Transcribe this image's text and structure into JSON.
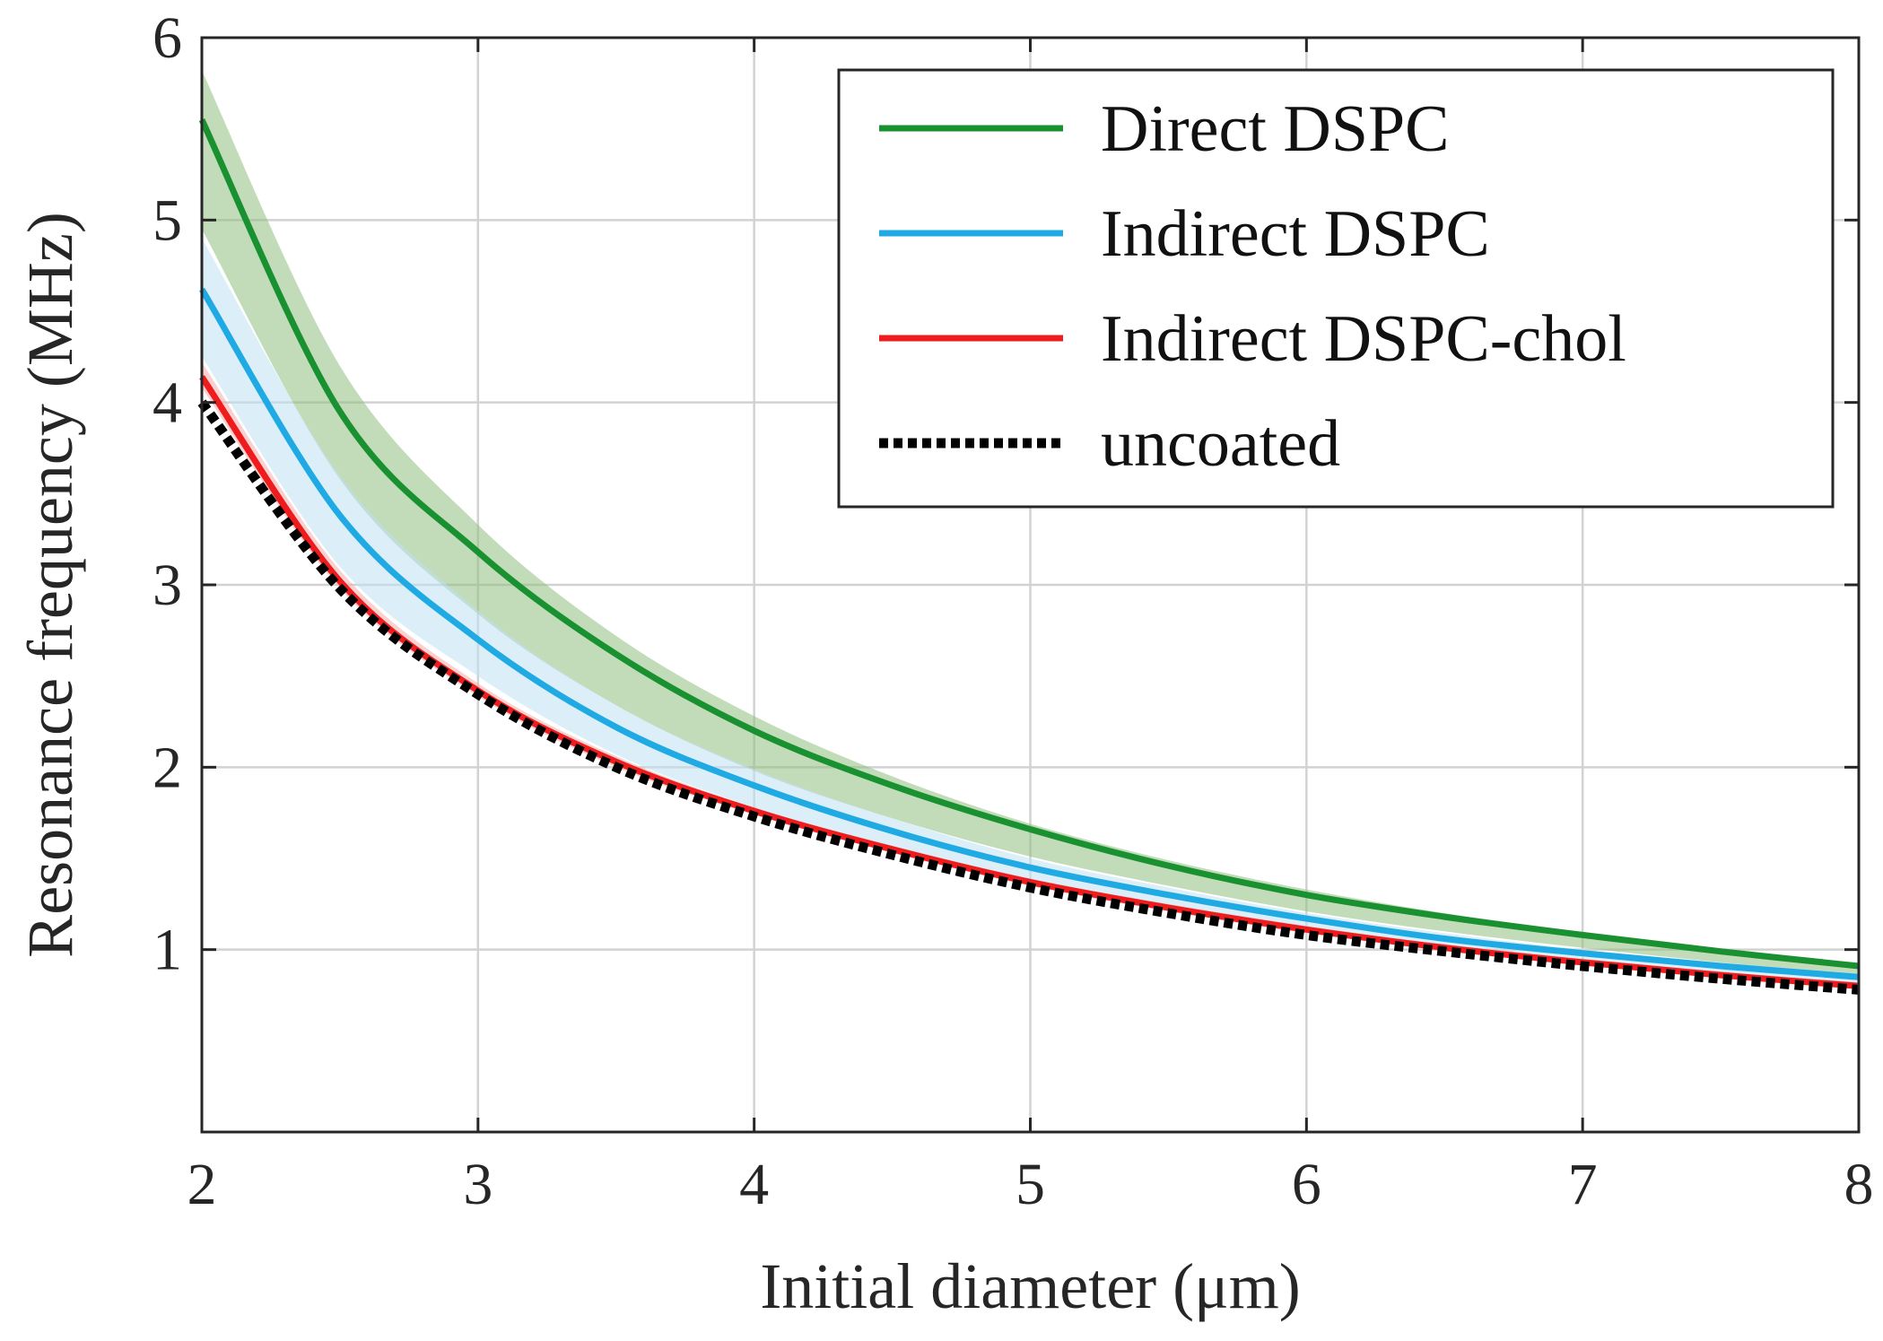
{
  "chart_data": {
    "type": "line",
    "title": "",
    "xlabel": "Initial diameter (μm)",
    "ylabel": "Resonance frequency (MHz)",
    "xlim": [
      2,
      8
    ],
    "ylim": [
      0,
      6
    ],
    "grid": true,
    "legend_position": "top-right",
    "x_ticks": [
      2,
      3,
      4,
      5,
      6,
      7,
      8
    ],
    "x_tick_labels": [
      "2",
      "3",
      "4",
      "5",
      "6",
      "7",
      "8"
    ],
    "y_ticks": [
      1,
      2,
      3,
      4,
      5,
      6
    ],
    "y_tick_labels": [
      "1",
      "2",
      "3",
      "4",
      "5",
      "6"
    ],
    "x": [
      2.0,
      2.5,
      3.0,
      3.5,
      4.0,
      4.5,
      5.0,
      5.5,
      6.0,
      6.5,
      7.0,
      7.5,
      8.0
    ],
    "series": [
      {
        "name": "Direct DSPC",
        "color": "#1a9130",
        "style": "solid",
        "values": [
          5.55,
          3.95,
          3.18,
          2.62,
          2.2,
          1.9,
          1.66,
          1.46,
          1.3,
          1.18,
          1.08,
          0.99,
          0.91
        ],
        "band_upper": [
          5.82,
          4.2,
          3.33,
          2.72,
          2.28,
          1.95,
          1.69,
          1.49,
          1.33,
          1.2,
          1.09,
          1.0,
          0.92
        ],
        "band_lower": [
          4.95,
          3.58,
          2.84,
          2.34,
          1.98,
          1.72,
          1.51,
          1.35,
          1.21,
          1.1,
          1.01,
          0.93,
          0.86
        ],
        "band_color": "#8fc07f"
      },
      {
        "name": "Indirect DSPC",
        "color": "#1faae3",
        "style": "solid",
        "values": [
          4.62,
          3.38,
          2.7,
          2.22,
          1.9,
          1.65,
          1.45,
          1.3,
          1.17,
          1.06,
          0.98,
          0.91,
          0.85
        ],
        "band_upper": [
          4.9,
          3.6,
          2.86,
          2.34,
          1.99,
          1.72,
          1.5,
          1.34,
          1.2,
          1.09,
          1.0,
          0.93,
          0.87
        ],
        "band_lower": [
          4.25,
          3.1,
          2.5,
          2.07,
          1.78,
          1.55,
          1.37,
          1.23,
          1.11,
          1.01,
          0.93,
          0.87,
          0.81
        ],
        "band_color": "#bfe0f3"
      },
      {
        "name": "Indirect DSPC-chol",
        "color": "#ee1c1c",
        "style": "solid",
        "values": [
          4.14,
          3.02,
          2.42,
          2.03,
          1.76,
          1.55,
          1.37,
          1.23,
          1.11,
          1.01,
          0.93,
          0.86,
          0.8
        ],
        "band_upper": [
          4.22,
          3.08,
          2.46,
          2.06,
          1.78,
          1.57,
          1.39,
          1.25,
          1.13,
          1.03,
          0.95,
          0.88,
          0.82
        ],
        "band_lower": [
          4.08,
          2.98,
          2.39,
          2.0,
          1.74,
          1.53,
          1.35,
          1.21,
          1.09,
          1.0,
          0.92,
          0.85,
          0.79
        ],
        "band_color": "#f5a9a9"
      },
      {
        "name": "uncoated",
        "color": "#000000",
        "style": "dotted",
        "values": [
          4.0,
          2.98,
          2.4,
          2.0,
          1.73,
          1.52,
          1.34,
          1.2,
          1.08,
          0.99,
          0.91,
          0.84,
          0.78
        ]
      }
    ]
  }
}
